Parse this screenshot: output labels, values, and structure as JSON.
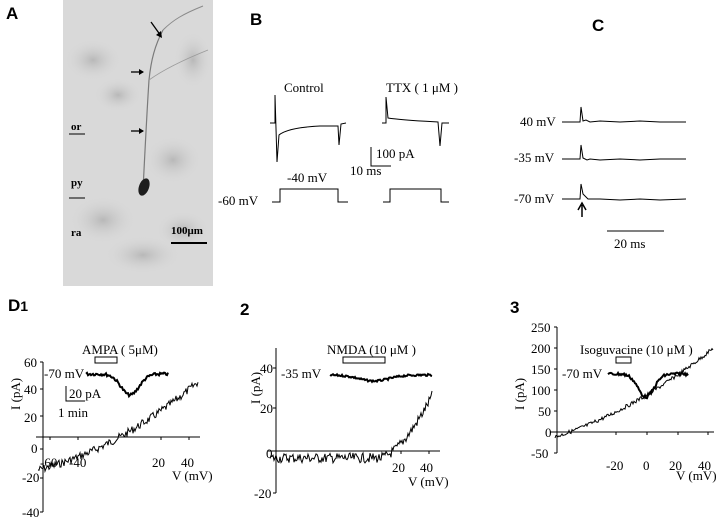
{
  "panels": {
    "a": {
      "letter": "A",
      "layers": [
        "or",
        "py",
        "ra"
      ],
      "scale_bar": "100μm"
    },
    "b": {
      "letter": "B",
      "control_label": "Control",
      "ttx_label": "TTX ( 1 μM )",
      "current_scale": "100 pA",
      "time_scale": "10 ms",
      "step_label": "-40 mV",
      "hold_label": "-60 mV"
    },
    "c": {
      "letter": "C",
      "voltages": [
        "40 mV",
        "-35 mV",
        "-70 mV"
      ],
      "time_scale": "20 ms"
    },
    "d1": {
      "letter": "D",
      "subnum": "1",
      "drug": "AMPA ( 5μM)",
      "hold": "-70 mV",
      "current_scale": "20 pA",
      "time_scale": "1 min",
      "ylabel": "I (pA)",
      "xlabel": "V (mV)",
      "yticks": [
        "60",
        "40",
        "20",
        "0",
        "-20",
        "-40"
      ],
      "xticks": [
        "-60",
        "-40",
        "20",
        "40"
      ]
    },
    "d2": {
      "number": "2",
      "drug": "NMDA (10 μM )",
      "hold": "-35 mV",
      "ylabel": "I (pA)",
      "xlabel": "V (mV)",
      "yticks": [
        "40",
        "20",
        "0",
        "-20"
      ],
      "xticks": [
        "20",
        "40"
      ]
    },
    "d3": {
      "number": "3",
      "drug": "Isoguvacine (10 μM )",
      "hold": "-70 mV",
      "ylabel": "I (pA)",
      "xlabel": "V (mV)",
      "yticks": [
        "250",
        "200",
        "150",
        "100",
        "50",
        "0",
        "-50"
      ],
      "xticks": [
        "-20",
        "0",
        "20",
        "40"
      ]
    }
  }
}
